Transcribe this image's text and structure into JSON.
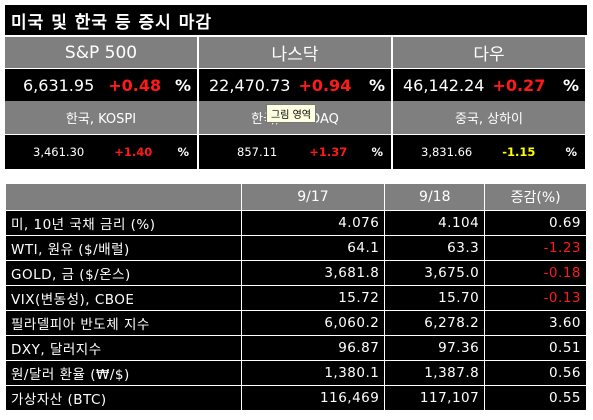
{
  "title": "미국 및 한국 등 증시 마감",
  "indices_row1": [
    {
      "name": "S&P 500",
      "price": "6,631.95",
      "change": "+0.48",
      "unit": "%"
    },
    {
      "name": "나스닥",
      "price": "22,470.73",
      "change": "+0.94",
      "unit": "%"
    },
    {
      "name": "다우",
      "price": "46,142.24",
      "change": "+0.27",
      "unit": "%"
    }
  ],
  "indices_row2": [
    {
      "name": "한국, KOSPI",
      "price": "3,461.30",
      "change": "+1.40",
      "unit": "%"
    },
    {
      "name": "한국, NASDAQ",
      "price": "857.11",
      "change": "+1.37",
      "unit": "%"
    },
    {
      "name": "중국, 상하이",
      "price": "3,831.66",
      "change": "-1.15",
      "unit": "%"
    }
  ],
  "tooltip": "그림 영역",
  "table": {
    "headers": [
      "",
      "9/17",
      "9/18",
      "증감(%)"
    ],
    "rows": [
      {
        "label": "미, 10년 국채 금리 (%)",
        "d1": "4.076",
        "d2": "4.104",
        "chg": "0.69",
        "neg": false
      },
      {
        "label": "WTI, 원유 ($/배럴)",
        "d1": "64.1",
        "d2": "63.3",
        "chg": "-1.23",
        "neg": true
      },
      {
        "label": "GOLD, 금 ($/온스)",
        "d1": "3,681.8",
        "d2": "3,675.0",
        "chg": "-0.18",
        "neg": true
      },
      {
        "label": "VIX(변동성), CBOE",
        "d1": "15.72",
        "d2": "15.70",
        "chg": "-0.13",
        "neg": true
      },
      {
        "label": "필라델피아 반도체 지수",
        "d1": "6,060.2",
        "d2": "6,278.2",
        "chg": "3.60",
        "neg": false
      },
      {
        "label": "DXY, 달러지수",
        "d1": "96.87",
        "d2": "97.36",
        "chg": "0.51",
        "neg": false
      },
      {
        "label": "원/달러 환율 (₩/$)",
        "d1": "1,380.1",
        "d2": "1,387.8",
        "chg": "0.56",
        "neg": false
      },
      {
        "label": "가상자산 (BTC)",
        "d1": "116,469",
        "d2": "117,107",
        "chg": "0.55",
        "neg": false
      }
    ]
  },
  "colors": {
    "up": "#ff1a1a",
    "down_highlight": "#ffff00",
    "header_bg": "#7f7f7f",
    "cell_bg": "#000000"
  }
}
